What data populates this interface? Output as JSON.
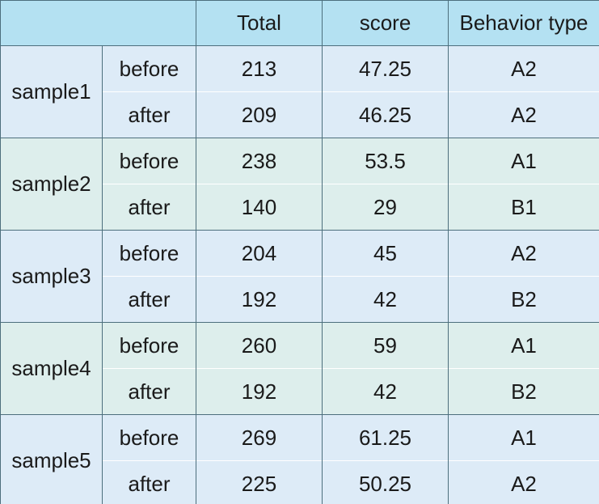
{
  "header": {
    "blank": "",
    "total": "Total",
    "score": "score",
    "behavior_type": "Behavior type"
  },
  "colors": {
    "header_bg": "#b4e1f2",
    "group_blue_bg": "#ddebf7",
    "group_green_bg": "#ddeeec",
    "border": "#4d6f7d"
  },
  "samples": [
    {
      "name": "sample1",
      "rows": [
        {
          "phase": "before",
          "total": "213",
          "score": "47.25",
          "type": "A2"
        },
        {
          "phase": "after",
          "total": "209",
          "score": "46.25",
          "type": "A2"
        }
      ]
    },
    {
      "name": "sample2",
      "rows": [
        {
          "phase": "before",
          "total": "238",
          "score": "53.5",
          "type": "A1"
        },
        {
          "phase": "after",
          "total": "140",
          "score": "29",
          "type": "B1"
        }
      ]
    },
    {
      "name": "sample3",
      "rows": [
        {
          "phase": "before",
          "total": "204",
          "score": "45",
          "type": "A2"
        },
        {
          "phase": "after",
          "total": "192",
          "score": "42",
          "type": "B2"
        }
      ]
    },
    {
      "name": "sample4",
      "rows": [
        {
          "phase": "before",
          "total": "260",
          "score": "59",
          "type": "A1"
        },
        {
          "phase": "after",
          "total": "192",
          "score": "42",
          "type": "B2"
        }
      ]
    },
    {
      "name": "sample5",
      "rows": [
        {
          "phase": "before",
          "total": "269",
          "score": "61.25",
          "type": "A1"
        },
        {
          "phase": "after",
          "total": "225",
          "score": "50.25",
          "type": "A2"
        }
      ]
    }
  ]
}
